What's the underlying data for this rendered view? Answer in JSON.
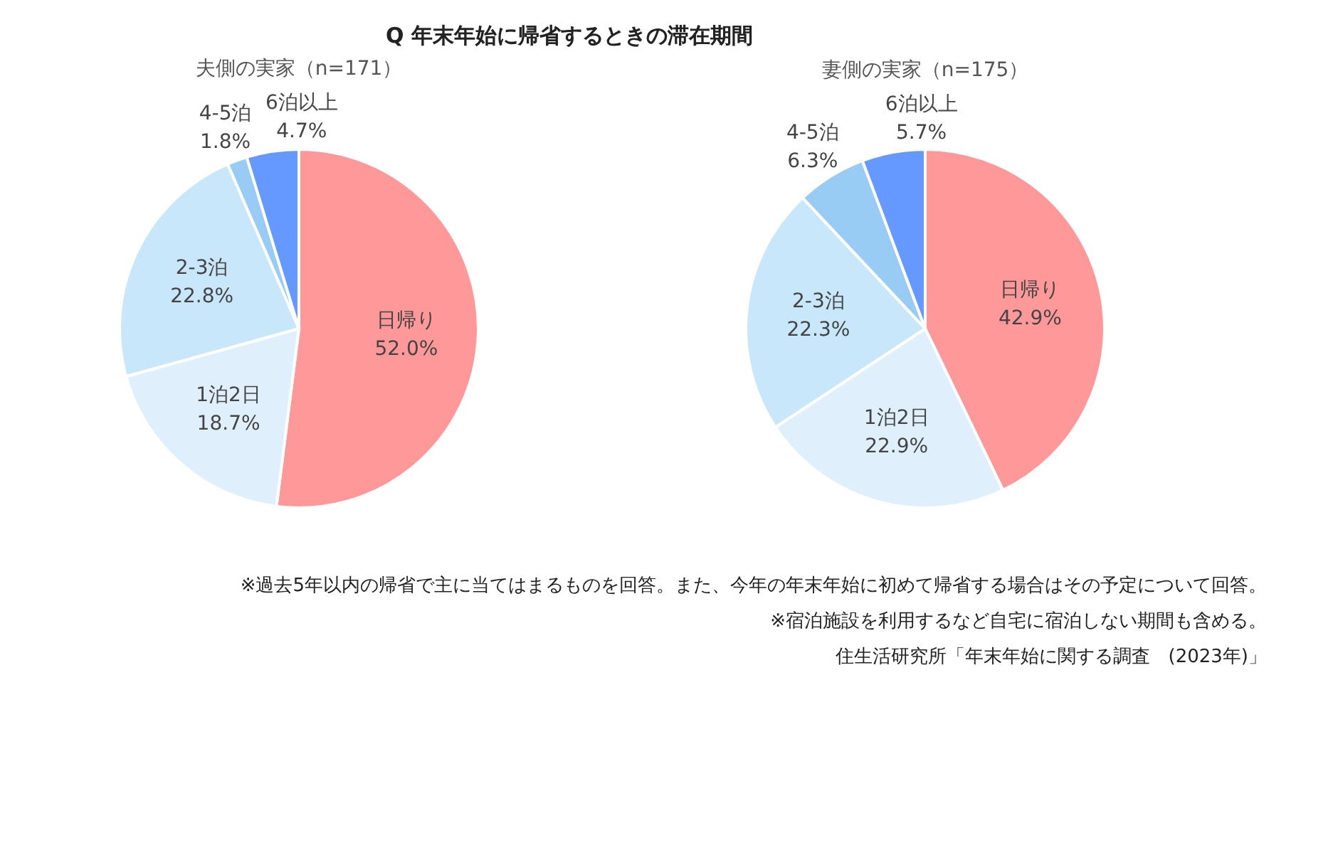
{
  "chart_data": [
    {
      "type": "pie",
      "title": "Q 年末年始に帰省するときの滞在期間",
      "subtitle": "夫側の実家（n=171）",
      "categories": [
        "日帰り",
        "1泊2日",
        "2-3泊",
        "4-5泊",
        "6泊以上"
      ],
      "values": [
        52.0,
        18.7,
        22.8,
        1.8,
        4.7
      ],
      "value_labels": [
        "52.0%",
        "18.7%",
        "22.8%",
        "1.8%",
        "4.7%"
      ],
      "colors": [
        "#ff9999",
        "#dff0fc",
        "#c9e7fb",
        "#99ccf5",
        "#6699ff"
      ],
      "data_labels": true,
      "legend": false
    },
    {
      "type": "pie",
      "subtitle": "妻側の実家（n=175）",
      "categories": [
        "日帰り",
        "1泊2日",
        "2-3泊",
        "4-5泊",
        "6泊以上"
      ],
      "values": [
        42.9,
        22.9,
        22.3,
        6.3,
        5.7
      ],
      "value_labels": [
        "42.9%",
        "22.9%",
        "22.3%",
        "6.3%",
        "5.7%"
      ],
      "colors": [
        "#ff9999",
        "#dff0fc",
        "#c9e7fb",
        "#99ccf5",
        "#6699ff"
      ],
      "data_labels": true,
      "legend": false,
      "annotations": [
        "※過去5年以内の帰省で主に当てはまるものを回答。また、今年の年末年始に初めて帰省する場合はその予定について回答。",
        "※宿泊施設を利用するなど自宅に宿泊しない期間も含める。",
        "住生活研究所「年末年始に関する調査　(2023年)」"
      ]
    }
  ]
}
